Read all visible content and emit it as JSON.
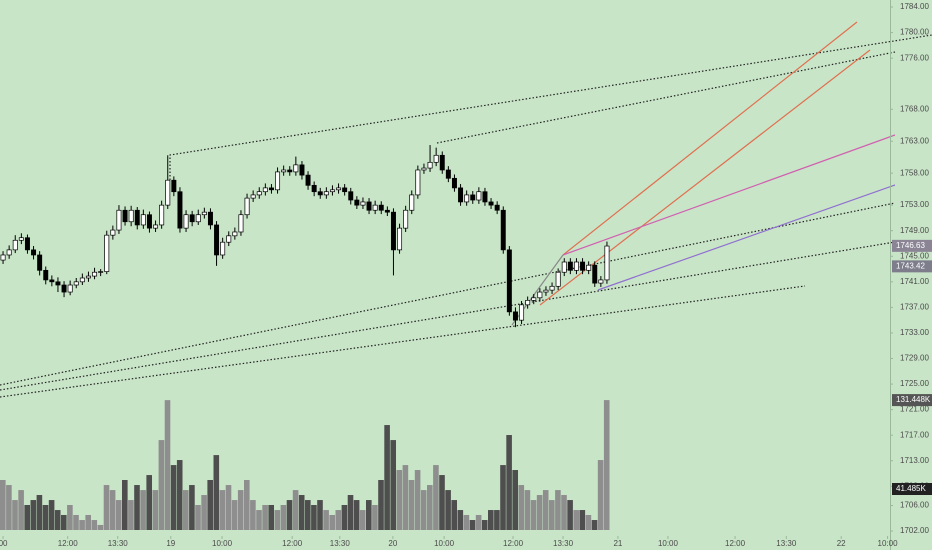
{
  "chart_data": {
    "type": "candlestick",
    "up_color": "#ffffff",
    "down_color": "#000000",
    "wick_color": "#000000",
    "volume_up_color": "#8e8e8e",
    "volume_down_color": "#4e4e4e",
    "xlim": [
      -0.5,
      145.4
    ],
    "xticks": [
      {
        "value": 0,
        "label": "00"
      },
      {
        "value": 10.6,
        "label": "12:00"
      },
      {
        "value": 18.8,
        "label": "13:30"
      },
      {
        "value": 27.5,
        "label": "19"
      },
      {
        "value": 35.9,
        "label": "10:00"
      },
      {
        "value": 47.4,
        "label": "12:00"
      },
      {
        "value": 55.2,
        "label": "13:30"
      },
      {
        "value": 63.9,
        "label": "20"
      },
      {
        "value": 72.3,
        "label": "10:00"
      },
      {
        "value": 83.6,
        "label": "12:00"
      },
      {
        "value": 91.8,
        "label": "13:30"
      },
      {
        "value": 100.8,
        "label": "21"
      },
      {
        "value": 109,
        "label": "10:00"
      },
      {
        "value": 120,
        "label": "12:00"
      },
      {
        "value": 128.4,
        "label": "13:30"
      },
      {
        "value": 137.4,
        "label": "22"
      },
      {
        "value": 145,
        "label": "10:00"
      }
    ],
    "ylim": [
      1700.6,
      1785.1
    ],
    "yticks": [
      {
        "value": 1784,
        "label": "1784.00"
      },
      {
        "value": 1780,
        "label": "1780.00"
      },
      {
        "value": 1776,
        "label": "1776.00"
      },
      {
        "value": 1768,
        "label": "1768.00"
      },
      {
        "value": 1763,
        "label": "1763.00"
      },
      {
        "value": 1758,
        "label": "1758.00"
      },
      {
        "value": 1753,
        "label": "1753.00"
      },
      {
        "value": 1749,
        "label": "1749.00"
      },
      {
        "value": 1745,
        "label": "1745.00"
      },
      {
        "value": 1741,
        "label": "1741.00"
      },
      {
        "value": 1737,
        "label": "1737.00"
      },
      {
        "value": 1733,
        "label": "1733.00"
      },
      {
        "value": 1729,
        "label": "1729.00"
      },
      {
        "value": 1725,
        "label": "1725.00"
      },
      {
        "value": 1721,
        "label": "1721.00"
      },
      {
        "value": 1717,
        "label": "1717.00"
      },
      {
        "value": 1713,
        "label": "1713.00"
      },
      {
        "value": 1709,
        "label": "1709.00"
      },
      {
        "value": 1706,
        "label": "1706.00"
      },
      {
        "value": 1702,
        "label": "1702.00"
      }
    ],
    "volume_lim": [
      0,
      170
    ],
    "price_labels": [
      {
        "value": 1746.63,
        "color": "#8a8495"
      },
      {
        "value": 1743.42,
        "color": "#7d7d8c"
      }
    ],
    "volume_labels": [
      {
        "value": 131.448,
        "label": "131.448K",
        "color": "#555555"
      },
      {
        "value": 41.485,
        "label": "41.485K",
        "color": "#222222"
      }
    ],
    "open": [
      1744.4,
      1745.2,
      1746.0,
      1747.5,
      1747.9,
      1746.0,
      1745.2,
      1742.8,
      1741.3,
      1741.0,
      1740.5,
      1739.4,
      1740.5,
      1741.0,
      1741.6,
      1741.9,
      1742.5,
      1742.6,
      1748.3,
      1749.1,
      1752.2,
      1750.4,
      1752.2,
      1749.9,
      1751.5,
      1749.4,
      1749.9,
      1753.0,
      1756.9,
      1755.1,
      1749.4,
      1751.5,
      1750.4,
      1751.5,
      1751.9,
      1749.9,
      1745.2,
      1747.2,
      1748.2,
      1748.8,
      1751.5,
      1754.1,
      1754.6,
      1755.1,
      1755.7,
      1755.4,
      1758.2,
      1758.5,
      1758.2,
      1759.3,
      1757.7,
      1756.1,
      1755.1,
      1754.6,
      1755.1,
      1755.4,
      1755.7,
      1755.1,
      1753.8,
      1753.0,
      1753.5,
      1752.2,
      1753.0,
      1752.2,
      1751.9,
      1746.0,
      1749.4,
      1752.2,
      1754.6,
      1758.5,
      1758.8,
      1759.7,
      1760.8,
      1758.5,
      1757.2,
      1755.7,
      1753.5,
      1754.6,
      1753.8,
      1755.1,
      1753.5,
      1753.0,
      1752.2,
      1746.0,
      1736.3,
      1735.0,
      1737.4,
      1738.1,
      1738.5,
      1739.4,
      1739.7,
      1740.3,
      1742.5,
      1744.1,
      1742.8,
      1744.1,
      1742.8,
      1743.6,
      1740.8,
      1741.3
    ],
    "high": [
      1745.8,
      1746.7,
      1748.3,
      1748.6,
      1748.4,
      1746.6,
      1745.8,
      1743.4,
      1742.0,
      1741.7,
      1741.1,
      1741.2,
      1741.6,
      1742.3,
      1742.6,
      1743.2,
      1743.0,
      1749.0,
      1749.8,
      1753.0,
      1752.8,
      1752.9,
      1752.7,
      1752.3,
      1752.0,
      1750.6,
      1753.7,
      1760.8,
      1757.5,
      1755.8,
      1752.2,
      1752.1,
      1752.3,
      1752.6,
      1752.5,
      1750.5,
      1747.9,
      1748.9,
      1749.5,
      1752.2,
      1754.8,
      1755.3,
      1755.8,
      1756.4,
      1756.3,
      1758.9,
      1759.2,
      1759.1,
      1760.6,
      1759.9,
      1758.3,
      1756.7,
      1755.7,
      1755.8,
      1756.1,
      1756.4,
      1756.3,
      1755.7,
      1754.4,
      1754.2,
      1754.1,
      1753.7,
      1753.6,
      1752.8,
      1752.5,
      1750.1,
      1752.9,
      1755.3,
      1759.2,
      1759.5,
      1762.4,
      1762.0,
      1761.4,
      1759.1,
      1757.8,
      1756.3,
      1755.3,
      1755.2,
      1755.8,
      1755.7,
      1754.1,
      1753.6,
      1752.8,
      1746.6,
      1737.0,
      1738.0,
      1738.7,
      1739.1,
      1740.0,
      1740.3,
      1740.9,
      1743.1,
      1744.7,
      1744.7,
      1744.7,
      1744.7,
      1744.2,
      1744.2,
      1741.9,
      1747.3
    ],
    "low": [
      1743.8,
      1744.6,
      1745.5,
      1746.9,
      1745.4,
      1744.5,
      1742.0,
      1740.6,
      1740.3,
      1739.4,
      1738.6,
      1738.9,
      1740.0,
      1740.5,
      1741.0,
      1741.4,
      1741.9,
      1742.2,
      1747.6,
      1748.5,
      1749.8,
      1749.7,
      1749.2,
      1749.3,
      1748.7,
      1748.8,
      1749.3,
      1752.4,
      1754.4,
      1748.7,
      1748.8,
      1749.7,
      1749.9,
      1750.9,
      1749.2,
      1743.5,
      1744.6,
      1746.6,
      1747.6,
      1748.2,
      1750.9,
      1753.5,
      1754.0,
      1754.5,
      1754.8,
      1754.8,
      1757.6,
      1757.6,
      1757.6,
      1757.0,
      1755.4,
      1754.4,
      1754.0,
      1754.0,
      1754.5,
      1754.8,
      1754.5,
      1753.1,
      1752.4,
      1752.4,
      1751.6,
      1751.6,
      1751.6,
      1751.3,
      1742.0,
      1745.4,
      1748.8,
      1751.6,
      1754.0,
      1757.9,
      1758.2,
      1759.1,
      1757.9,
      1756.6,
      1755.1,
      1752.9,
      1752.9,
      1753.2,
      1753.2,
      1752.9,
      1752.4,
      1751.6,
      1745.4,
      1735.7,
      1733.9,
      1734.4,
      1736.8,
      1737.5,
      1737.9,
      1738.8,
      1739.1,
      1739.7,
      1741.9,
      1742.2,
      1742.2,
      1742.2,
      1742.2,
      1740.2,
      1740.2,
      1740.7
    ],
    "close": [
      1745.2,
      1746.0,
      1747.5,
      1747.9,
      1746.0,
      1745.2,
      1742.8,
      1741.3,
      1741.0,
      1740.5,
      1739.4,
      1740.5,
      1741.0,
      1741.6,
      1741.9,
      1742.5,
      1742.6,
      1748.3,
      1749.1,
      1752.2,
      1750.4,
      1752.2,
      1749.9,
      1751.5,
      1749.4,
      1749.9,
      1753.0,
      1756.9,
      1755.1,
      1749.4,
      1751.5,
      1750.4,
      1751.5,
      1751.9,
      1749.9,
      1745.2,
      1747.2,
      1748.2,
      1748.8,
      1751.5,
      1754.1,
      1754.6,
      1755.1,
      1755.7,
      1755.4,
      1758.2,
      1758.5,
      1758.2,
      1759.3,
      1757.7,
      1756.1,
      1755.1,
      1754.6,
      1755.1,
      1755.4,
      1755.7,
      1755.1,
      1753.8,
      1753.0,
      1753.5,
      1752.2,
      1753.0,
      1752.2,
      1751.9,
      1746.0,
      1749.4,
      1752.2,
      1754.6,
      1758.5,
      1758.8,
      1759.7,
      1760.8,
      1758.5,
      1757.2,
      1755.7,
      1753.5,
      1754.6,
      1753.8,
      1755.1,
      1753.5,
      1753.0,
      1752.2,
      1746.0,
      1736.3,
      1735.0,
      1737.4,
      1738.1,
      1738.5,
      1739.4,
      1739.7,
      1740.3,
      1742.5,
      1744.1,
      1742.8,
      1744.1,
      1742.8,
      1743.6,
      1740.8,
      1741.3,
      1746.6
    ],
    "volume": [
      50.6,
      45.5,
      30.3,
      40.4,
      25.3,
      30.3,
      35.4,
      25.3,
      30.3,
      20.2,
      15.2,
      25.3,
      15.2,
      10.1,
      15.2,
      10.1,
      5.1,
      45.5,
      40.4,
      30.3,
      50.6,
      30.3,
      45.5,
      40.4,
      55.6,
      40.4,
      91.0,
      131.4,
      65.7,
      70.8,
      40.4,
      45.5,
      25.3,
      35.4,
      50.6,
      75.8,
      40.4,
      45.5,
      30.3,
      40.4,
      50.6,
      30.3,
      20.2,
      25.3,
      25.3,
      20.2,
      25.3,
      30.3,
      40.4,
      35.4,
      30.3,
      25.3,
      30.3,
      20.2,
      15.2,
      20.2,
      25.3,
      35.4,
      30.3,
      20.2,
      30.3,
      25.3,
      50.6,
      106.2,
      91.0,
      60.7,
      65.7,
      50.6,
      60.7,
      40.4,
      45.5,
      65.7,
      55.6,
      40.4,
      30.3,
      20.2,
      15.2,
      10.1,
      15.2,
      10.1,
      20.2,
      20.2,
      65.7,
      96.1,
      60.7,
      45.5,
      40.4,
      30.3,
      35.4,
      40.4,
      30.3,
      40.4,
      35.4,
      30.3,
      20.2,
      20.2,
      15.2,
      10.1,
      70.8,
      131.448
    ]
  }
}
